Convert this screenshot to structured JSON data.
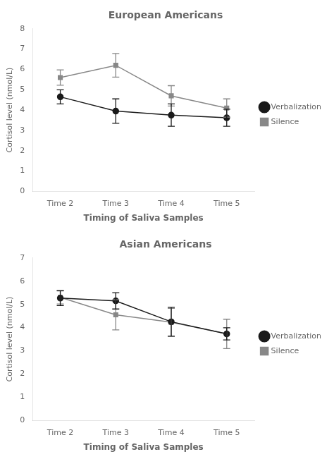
{
  "chart_data": [
    {
      "type": "line",
      "title": "European Americans",
      "categories": [
        "Time 2",
        "Time 3",
        "Time 4",
        "Time 5"
      ],
      "x_label": "Timing of Saliva Samples",
      "y_label": "Cortisol level (nmol/L)",
      "series": [
        {
          "name": "Verbalization",
          "color": "#1a1a1a",
          "marker": "circle",
          "values": [
            4.65,
            3.95,
            3.75,
            3.62
          ],
          "yerr": [
            0.35,
            0.6,
            0.55,
            0.42
          ]
        },
        {
          "name": "Silence",
          "color": "#888888",
          "marker": "square",
          "values": [
            5.6,
            6.2,
            4.7,
            4.1
          ],
          "yerr": [
            0.38,
            0.58,
            0.5,
            0.45
          ]
        }
      ],
      "ylim": [
        0,
        8
      ],
      "yticks": [
        0,
        1,
        2,
        3,
        4,
        5,
        6,
        7,
        8
      ],
      "grid": false,
      "legend": "right"
    },
    {
      "type": "line",
      "title": "Asian Americans",
      "categories": [
        "Time 2",
        "Time 3",
        "Time 4",
        "Time 5"
      ],
      "x_label": "Timing of Saliva Samples",
      "y_label": "Cortisol level (nmol/L)",
      "series": [
        {
          "name": "Verbalization",
          "color": "#1a1a1a",
          "marker": "circle",
          "values": [
            5.27,
            5.15,
            4.25,
            3.73
          ],
          "yerr": [
            0.32,
            0.35,
            0.62,
            0.26
          ]
        },
        {
          "name": "Silence",
          "color": "#888888",
          "marker": "square",
          "values": [
            5.3,
            4.55,
            4.23,
            3.73
          ],
          "yerr": [
            0.28,
            0.65,
            0.6,
            0.63
          ]
        }
      ],
      "ylim": [
        0,
        7
      ],
      "yticks": [
        0,
        1,
        2,
        3,
        4,
        5,
        6,
        7
      ],
      "grid": false,
      "legend": "right"
    }
  ]
}
